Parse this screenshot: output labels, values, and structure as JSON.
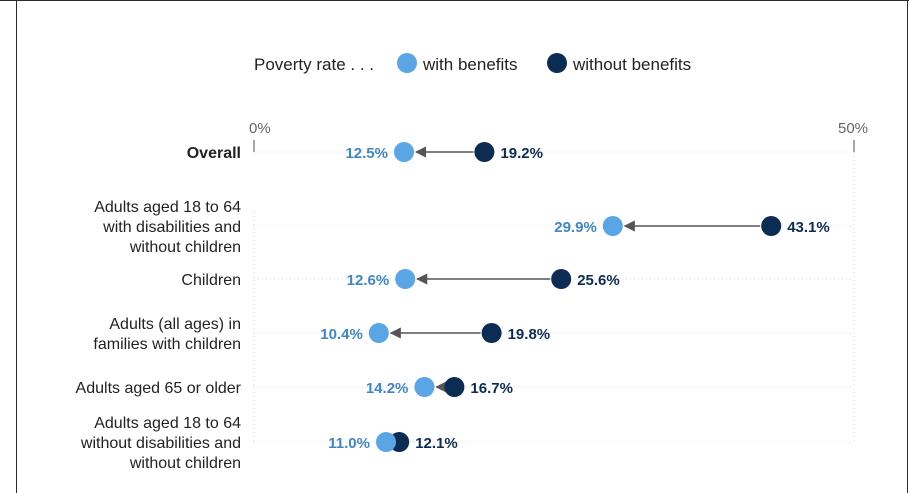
{
  "chart_data": {
    "type": "dumbbell",
    "legend": {
      "title": "Poverty rate . . .",
      "placement": "top-center",
      "items": [
        {
          "name": "with benefits",
          "color": "#5aa5e6"
        },
        {
          "name": "without benefits",
          "color": "#0d2c54"
        }
      ]
    },
    "x_axis": {
      "range": [
        0,
        50
      ],
      "tick_labels": [
        "0%",
        "50%"
      ],
      "grid": "dotted-guides"
    },
    "categories": [
      {
        "label": "Overall",
        "bold": true,
        "with": 12.5,
        "without": 19.2,
        "with_label": "12.5%",
        "without_label": "19.2%"
      },
      {
        "label": "Adults aged 18 to 64 with disabilities and without children",
        "lines": [
          "Adults aged 18 to 64",
          "with disabilities and",
          "without children"
        ],
        "bold": false,
        "with": 29.9,
        "without": 43.1,
        "with_label": "29.9%",
        "without_label": "43.1%"
      },
      {
        "label": "Children",
        "lines": [
          "Children"
        ],
        "bold": false,
        "with": 12.6,
        "without": 25.6,
        "with_label": "12.6%",
        "without_label": "25.6%"
      },
      {
        "label": "Adults (all ages) in families with children",
        "lines": [
          "Adults (all ages) in",
          "families with children"
        ],
        "bold": false,
        "with": 10.4,
        "without": 19.8,
        "with_label": "10.4%",
        "without_label": "19.8%"
      },
      {
        "label": "Adults aged 65 or older",
        "lines": [
          "Adults aged 65 or older"
        ],
        "bold": false,
        "with": 14.2,
        "without": 16.7,
        "with_label": "14.2%",
        "without_label": "16.7%"
      },
      {
        "label": "Adults aged 18 to 64 without disabilities and without children",
        "lines": [
          "Adults aged 18 to 64",
          "without disabilities and",
          "without children"
        ],
        "bold": false,
        "with": 11.0,
        "without": 12.1,
        "with_label": "11.0%",
        "without_label": "12.1%"
      }
    ],
    "colors": {
      "with": "#5aa5e6",
      "without": "#0d2c54",
      "with_label": "#3f86c9",
      "without_label": "#0d2c54",
      "arrow": "#555555",
      "category_label": "#222222",
      "axis": "#8a8a8a"
    }
  }
}
